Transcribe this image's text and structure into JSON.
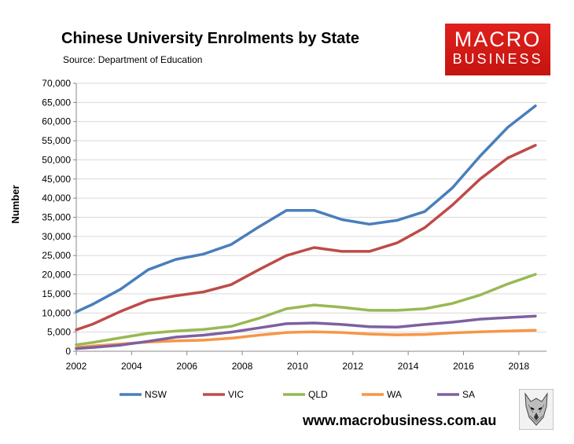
{
  "header": {
    "title": "Chinese University Enrolments by State",
    "source": "Source: Department of Education"
  },
  "logo": {
    "line1": "MACRO",
    "line2": "BUSINESS"
  },
  "footer": {
    "url": "www.macrobusiness.com.au"
  },
  "chart_data": {
    "type": "line",
    "title": "Chinese University Enrolments by State",
    "xlabel": "",
    "ylabel": "Number",
    "xlim": [
      2002,
      2019
    ],
    "ylim": [
      0,
      70000
    ],
    "x_ticks": [
      2002,
      2004,
      2006,
      2008,
      2010,
      2012,
      2014,
      2016,
      2018
    ],
    "y_ticks": [
      0,
      5000,
      10000,
      15000,
      20000,
      25000,
      30000,
      35000,
      40000,
      45000,
      50000,
      55000,
      60000,
      65000,
      70000
    ],
    "y_tick_labels": [
      "0",
      "5,000",
      "10,000",
      "15,000",
      "20,000",
      "25,000",
      "30,000",
      "35,000",
      "40,000",
      "45,000",
      "50,000",
      "55,000",
      "60,000",
      "65,000",
      "70,000"
    ],
    "grid": "horizontal",
    "legend_position": "bottom",
    "x": [
      2002,
      2002.6,
      2003.6,
      2004.6,
      2005.6,
      2006.6,
      2007.6,
      2008.6,
      2009.6,
      2010.6,
      2011.6,
      2012.6,
      2013.6,
      2014.6,
      2015.6,
      2016.6,
      2017.6,
      2018.6
    ],
    "series": [
      {
        "name": "NSW",
        "color": "#4a7ebb",
        "values": [
          10300,
          12300,
          16200,
          21300,
          24000,
          25400,
          27900,
          32500,
          36800,
          36800,
          34400,
          33200,
          34200,
          36500,
          42700,
          51000,
          58500,
          64100
        ]
      },
      {
        "name": "VIC",
        "color": "#be4b48",
        "values": [
          5600,
          7100,
          10400,
          13300,
          14500,
          15500,
          17400,
          21300,
          25000,
          27100,
          26100,
          26100,
          28300,
          32300,
          38200,
          45000,
          50500,
          53800
        ]
      },
      {
        "name": "QLD",
        "color": "#98b954",
        "values": [
          1700,
          2300,
          3500,
          4700,
          5300,
          5700,
          6500,
          8600,
          11100,
          12100,
          11500,
          10700,
          10700,
          11100,
          12500,
          14700,
          17600,
          20100
        ]
      },
      {
        "name": "WA",
        "color": "#f79646",
        "values": [
          1000,
          1400,
          1900,
          2400,
          2700,
          2900,
          3400,
          4200,
          4900,
          5100,
          4900,
          4500,
          4300,
          4400,
          4800,
          5100,
          5300,
          5500
        ]
      },
      {
        "name": "SA",
        "color": "#7d60a0",
        "values": [
          700,
          1000,
          1600,
          2600,
          3700,
          4200,
          5000,
          6100,
          7200,
          7400,
          7000,
          6400,
          6300,
          7000,
          7600,
          8400,
          8800,
          9200
        ]
      }
    ]
  }
}
